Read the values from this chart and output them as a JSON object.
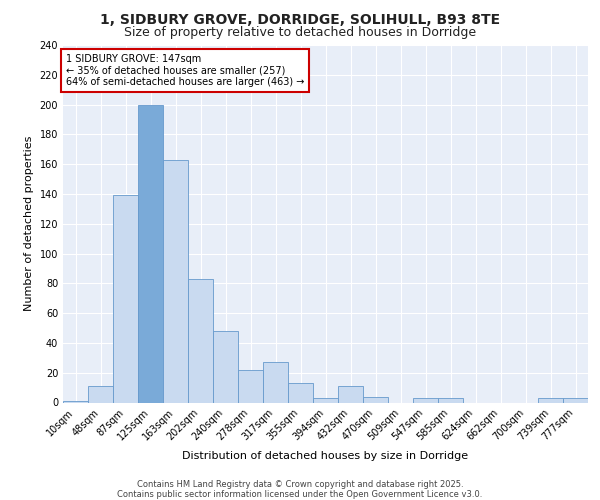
{
  "title": "1, SIDBURY GROVE, DORRIDGE, SOLIHULL, B93 8TE",
  "subtitle": "Size of property relative to detached houses in Dorridge",
  "xlabel": "Distribution of detached houses by size in Dorridge",
  "ylabel": "Number of detached properties",
  "categories": [
    "10sqm",
    "48sqm",
    "87sqm",
    "125sqm",
    "163sqm",
    "202sqm",
    "240sqm",
    "278sqm",
    "317sqm",
    "355sqm",
    "394sqm",
    "432sqm",
    "470sqm",
    "509sqm",
    "547sqm",
    "585sqm",
    "624sqm",
    "662sqm",
    "700sqm",
    "739sqm",
    "777sqm"
  ],
  "values": [
    1,
    11,
    139,
    200,
    163,
    83,
    48,
    22,
    27,
    13,
    3,
    11,
    4,
    0,
    3,
    3,
    0,
    0,
    0,
    3,
    3
  ],
  "bar_color": "#c9daf0",
  "bar_edge_color": "#6699cc",
  "background_color": "#e8eef8",
  "grid_color": "#ffffff",
  "annotation_text": "1 SIDBURY GROVE: 147sqm\n← 35% of detached houses are smaller (257)\n64% of semi-detached houses are larger (463) →",
  "annotation_box_color": "#cc0000",
  "highlight_bar_index": 3,
  "highlight_bar_color": "#7aaad8",
  "ylim": [
    0,
    240
  ],
  "yticks": [
    0,
    20,
    40,
    60,
    80,
    100,
    120,
    140,
    160,
    180,
    200,
    220,
    240
  ],
  "footer": "Contains HM Land Registry data © Crown copyright and database right 2025.\nContains public sector information licensed under the Open Government Licence v3.0.",
  "title_fontsize": 10,
  "subtitle_fontsize": 9,
  "tick_fontsize": 7,
  "ylabel_fontsize": 8,
  "xlabel_fontsize": 8,
  "annotation_fontsize": 7,
  "footer_fontsize": 6
}
